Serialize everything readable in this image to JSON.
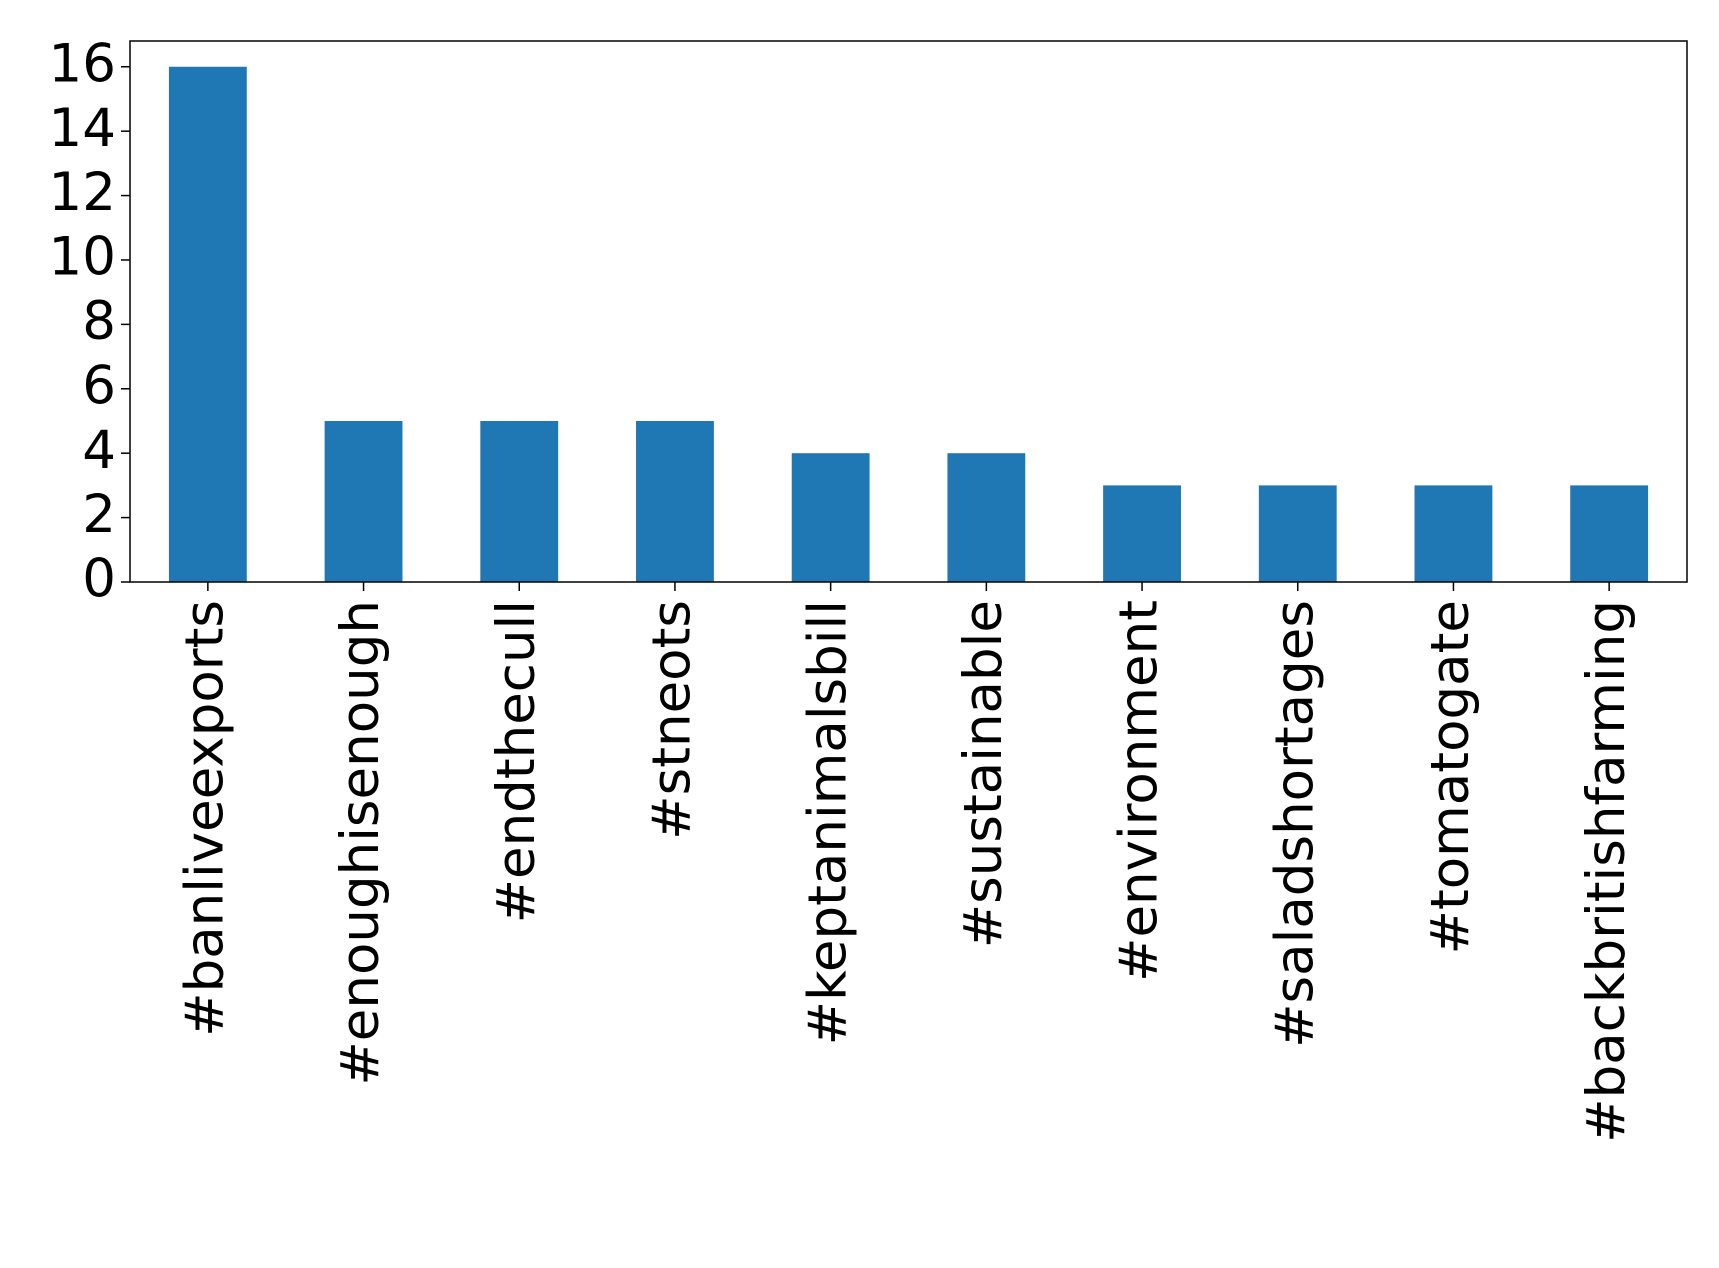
{
  "chart_data": {
    "type": "bar",
    "categories": [
      "#banliveexports",
      "#enoughisenough",
      "#endthecull",
      "#stneots",
      "#keptanimalsbill",
      "#sustainable",
      "#environment",
      "#saladshortages",
      "#tomatogate",
      "#backbritishfarming"
    ],
    "values": [
      16,
      5,
      5,
      5,
      4,
      4,
      3,
      3,
      3,
      3
    ],
    "color": "#1f77b4",
    "ylim": [
      0,
      16.8
    ],
    "yticks": [
      0,
      2,
      4,
      6,
      8,
      10,
      12,
      14,
      16
    ],
    "grid": false
  }
}
